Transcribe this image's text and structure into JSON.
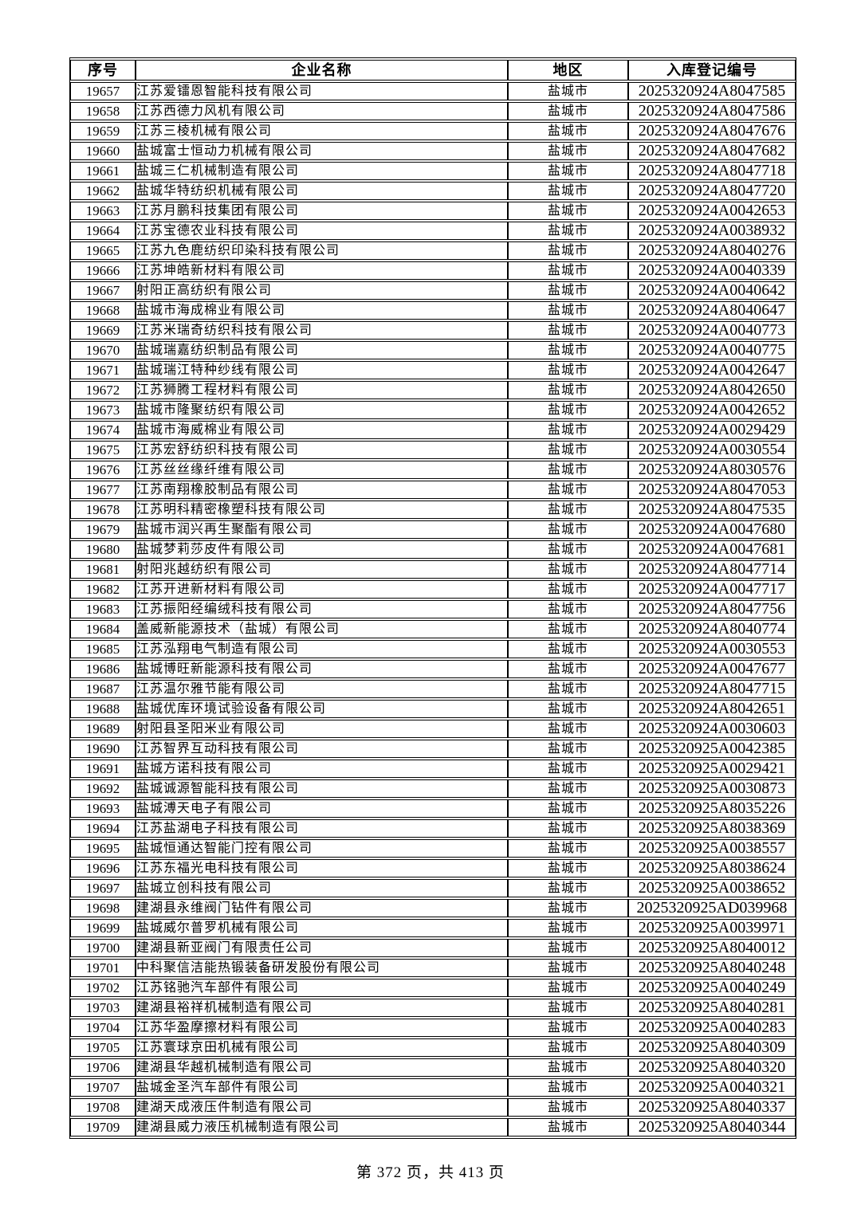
{
  "table": {
    "headers": [
      "序号",
      "企业名称",
      "地区",
      "入库登记编号"
    ],
    "rows": [
      {
        "seq": "19657",
        "name": "江苏爱镭恩智能科技有限公司",
        "region": "盐城市",
        "regno": "2025320924A8047585"
      },
      {
        "seq": "19658",
        "name": "江苏西德力风机有限公司",
        "region": "盐城市",
        "regno": "2025320924A8047586"
      },
      {
        "seq": "19659",
        "name": "江苏三棱机械有限公司",
        "region": "盐城市",
        "regno": "2025320924A8047676"
      },
      {
        "seq": "19660",
        "name": "盐城富士恒动力机械有限公司",
        "region": "盐城市",
        "regno": "2025320924A8047682"
      },
      {
        "seq": "19661",
        "name": "盐城三仁机械制造有限公司",
        "region": "盐城市",
        "regno": "2025320924A8047718"
      },
      {
        "seq": "19662",
        "name": "盐城华特纺织机械有限公司",
        "region": "盐城市",
        "regno": "2025320924A8047720"
      },
      {
        "seq": "19663",
        "name": "江苏月鹏科技集团有限公司",
        "region": "盐城市",
        "regno": "2025320924A0042653"
      },
      {
        "seq": "19664",
        "name": "江苏宝德农业科技有限公司",
        "region": "盐城市",
        "regno": "2025320924A0038932"
      },
      {
        "seq": "19665",
        "name": "江苏九色鹿纺织印染科技有限公司",
        "region": "盐城市",
        "regno": "2025320924A8040276"
      },
      {
        "seq": "19666",
        "name": "江苏坤皓新材料有限公司",
        "region": "盐城市",
        "regno": "2025320924A0040339"
      },
      {
        "seq": "19667",
        "name": "射阳正高纺织有限公司",
        "region": "盐城市",
        "regno": "2025320924A0040642"
      },
      {
        "seq": "19668",
        "name": "盐城市海成棉业有限公司",
        "region": "盐城市",
        "regno": "2025320924A8040647"
      },
      {
        "seq": "19669",
        "name": "江苏米瑞奇纺织科技有限公司",
        "region": "盐城市",
        "regno": "2025320924A0040773"
      },
      {
        "seq": "19670",
        "name": "盐城瑞嘉纺织制品有限公司",
        "region": "盐城市",
        "regno": "2025320924A0040775"
      },
      {
        "seq": "19671",
        "name": "盐城瑞江特种纱线有限公司",
        "region": "盐城市",
        "regno": "2025320924A0042647"
      },
      {
        "seq": "19672",
        "name": "江苏狮腾工程材料有限公司",
        "region": "盐城市",
        "regno": "2025320924A8042650"
      },
      {
        "seq": "19673",
        "name": "盐城市隆聚纺织有限公司",
        "region": "盐城市",
        "regno": "2025320924A0042652"
      },
      {
        "seq": "19674",
        "name": "盐城市海威棉业有限公司",
        "region": "盐城市",
        "regno": "2025320924A0029429"
      },
      {
        "seq": "19675",
        "name": "江苏宏舒纺织科技有限公司",
        "region": "盐城市",
        "regno": "2025320924A0030554"
      },
      {
        "seq": "19676",
        "name": "江苏丝丝缘纤维有限公司",
        "region": "盐城市",
        "regno": "2025320924A8030576"
      },
      {
        "seq": "19677",
        "name": "江苏南翔橡胶制品有限公司",
        "region": "盐城市",
        "regno": "2025320924A8047053"
      },
      {
        "seq": "19678",
        "name": "江苏明科精密橡塑科技有限公司",
        "region": "盐城市",
        "regno": "2025320924A8047535"
      },
      {
        "seq": "19679",
        "name": "盐城市润兴再生聚酯有限公司",
        "region": "盐城市",
        "regno": "2025320924A0047680"
      },
      {
        "seq": "19680",
        "name": "盐城梦莉莎皮件有限公司",
        "region": "盐城市",
        "regno": "2025320924A0047681"
      },
      {
        "seq": "19681",
        "name": "射阳兆越纺织有限公司",
        "region": "盐城市",
        "regno": "2025320924A8047714"
      },
      {
        "seq": "19682",
        "name": "江苏开进新材料有限公司",
        "region": "盐城市",
        "regno": "2025320924A0047717"
      },
      {
        "seq": "19683",
        "name": "江苏振阳经编绒科技有限公司",
        "region": "盐城市",
        "regno": "2025320924A8047756"
      },
      {
        "seq": "19684",
        "name": "盖威新能源技术（盐城）有限公司",
        "region": "盐城市",
        "regno": "2025320924A8040774"
      },
      {
        "seq": "19685",
        "name": "江苏泓翔电气制造有限公司",
        "region": "盐城市",
        "regno": "2025320924A0030553"
      },
      {
        "seq": "19686",
        "name": "盐城博旺新能源科技有限公司",
        "region": "盐城市",
        "regno": "2025320924A0047677"
      },
      {
        "seq": "19687",
        "name": "江苏温尔雅节能有限公司",
        "region": "盐城市",
        "regno": "2025320924A8047715"
      },
      {
        "seq": "19688",
        "name": "盐城优库环境试验设备有限公司",
        "region": "盐城市",
        "regno": "2025320924A8042651"
      },
      {
        "seq": "19689",
        "name": "射阳县圣阳米业有限公司",
        "region": "盐城市",
        "regno": "2025320924A0030603"
      },
      {
        "seq": "19690",
        "name": "江苏智界互动科技有限公司",
        "region": "盐城市",
        "regno": "2025320925A0042385"
      },
      {
        "seq": "19691",
        "name": "盐城方诺科技有限公司",
        "region": "盐城市",
        "regno": "2025320925A0029421"
      },
      {
        "seq": "19692",
        "name": "盐城诚源智能科技有限公司",
        "region": "盐城市",
        "regno": "2025320925A0030873"
      },
      {
        "seq": "19693",
        "name": "盐城溥天电子有限公司",
        "region": "盐城市",
        "regno": "2025320925A8035226"
      },
      {
        "seq": "19694",
        "name": "江苏盐湖电子科技有限公司",
        "region": "盐城市",
        "regno": "2025320925A8038369"
      },
      {
        "seq": "19695",
        "name": "盐城恒通达智能门控有限公司",
        "region": "盐城市",
        "regno": "2025320925A0038557"
      },
      {
        "seq": "19696",
        "name": "江苏东福光电科技有限公司",
        "region": "盐城市",
        "regno": "2025320925A8038624"
      },
      {
        "seq": "19697",
        "name": "盐城立创科技有限公司",
        "region": "盐城市",
        "regno": "2025320925A0038652"
      },
      {
        "seq": "19698",
        "name": "建湖县永维阀门钻件有限公司",
        "region": "盐城市",
        "regno": "2025320925AD039968"
      },
      {
        "seq": "19699",
        "name": "盐城威尔普罗机械有限公司",
        "region": "盐城市",
        "regno": "2025320925A0039971"
      },
      {
        "seq": "19700",
        "name": "建湖县新亚阀门有限责任公司",
        "region": "盐城市",
        "regno": "2025320925A8040012"
      },
      {
        "seq": "19701",
        "name": "中科聚信洁能热锻装备研发股份有限公司",
        "region": "盐城市",
        "regno": "2025320925A8040248"
      },
      {
        "seq": "19702",
        "name": "江苏铭驰汽车部件有限公司",
        "region": "盐城市",
        "regno": "2025320925A0040249"
      },
      {
        "seq": "19703",
        "name": "建湖县裕祥机械制造有限公司",
        "region": "盐城市",
        "regno": "2025320925A8040281"
      },
      {
        "seq": "19704",
        "name": "江苏华盈摩擦材料有限公司",
        "region": "盐城市",
        "regno": "2025320925A0040283"
      },
      {
        "seq": "19705",
        "name": "江苏寰球京田机械有限公司",
        "region": "盐城市",
        "regno": "2025320925A8040309"
      },
      {
        "seq": "19706",
        "name": "建湖县华越机械制造有限公司",
        "region": "盐城市",
        "regno": "2025320925A8040320"
      },
      {
        "seq": "19707",
        "name": "盐城金圣汽车部件有限公司",
        "region": "盐城市",
        "regno": "2025320925A0040321"
      },
      {
        "seq": "19708",
        "name": "建湖天成液压件制造有限公司",
        "region": "盐城市",
        "regno": "2025320925A8040337"
      },
      {
        "seq": "19709",
        "name": "建湖县威力液压机械制造有限公司",
        "region": "盐城市",
        "regno": "2025320925A8040344"
      }
    ]
  },
  "footer": {
    "text": "第 372 页，共 413 页",
    "page_number": "372",
    "total_pages": "413"
  },
  "colors": {
    "text": "#000000",
    "border": "#000000",
    "background": "#ffffff"
  }
}
